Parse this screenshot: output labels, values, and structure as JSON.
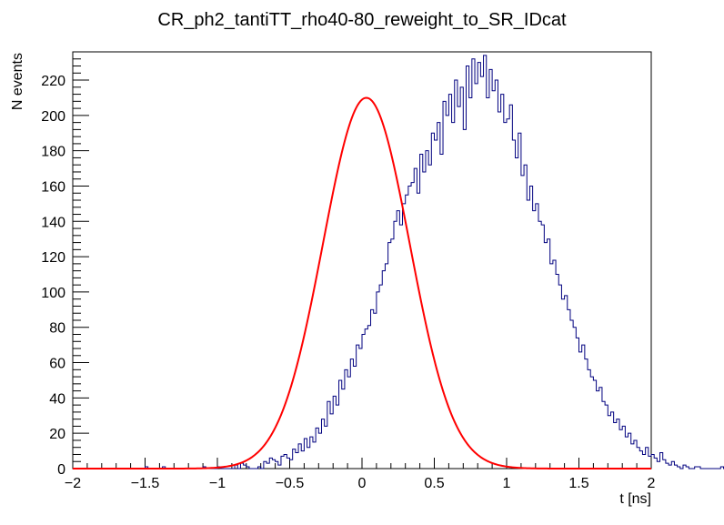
{
  "chart_data": {
    "type": "histogram",
    "title": "CR_ph2_tantiTT_rho40-80_reweight_to_SR_IDcat",
    "xlabel": "t [ns]",
    "ylabel": "N events",
    "xlim": [
      -2,
      2
    ],
    "ylim": [
      0,
      236
    ],
    "x_ticks": [
      -2,
      -1.5,
      -1,
      -0.5,
      0,
      0.5,
      1,
      1.5,
      2
    ],
    "x_tick_labels": [
      "−2",
      "−1.5",
      "−1",
      "−0.5",
      "0",
      "0.5",
      "1",
      "1.5",
      "2"
    ],
    "y_ticks": [
      0,
      20,
      40,
      60,
      80,
      100,
      120,
      140,
      160,
      180,
      200,
      220
    ],
    "y_tick_labels": [
      "0",
      "20",
      "40",
      "60",
      "80",
      "100",
      "120",
      "140",
      "160",
      "180",
      "200",
      "220"
    ],
    "grid": false,
    "legend": "none",
    "series": [
      {
        "kind": "histogram",
        "color": "#00007f",
        "bin_width": 0.02,
        "x_start": -2,
        "values": [
          0,
          0,
          0,
          0,
          0,
          0,
          0,
          0,
          0,
          0,
          0,
          0,
          0,
          0,
          0,
          0,
          0,
          0,
          0,
          0,
          0,
          0,
          0,
          0,
          0,
          1,
          0,
          0,
          0,
          0,
          0,
          1,
          0,
          0,
          0,
          0,
          0,
          0,
          0,
          0,
          0,
          0,
          0,
          0,
          0,
          1,
          0,
          0,
          0,
          0,
          1,
          0,
          0,
          0,
          0,
          0,
          2,
          0,
          3,
          2,
          1,
          0,
          0,
          0,
          1,
          0,
          4,
          3,
          6,
          5,
          4,
          2,
          7,
          8,
          6,
          5,
          11,
          9,
          14,
          10,
          17,
          12,
          18,
          15,
          23,
          20,
          28,
          24,
          38,
          31,
          41,
          36,
          50,
          45,
          56,
          52,
          62,
          58,
          70,
          68,
          76,
          79,
          81,
          90,
          88,
          100,
          104,
          112,
          116,
          128,
          130,
          140,
          146,
          138,
          150,
          155,
          160,
          162,
          170,
          156,
          178,
          168,
          180,
          172,
          190,
          186,
          196,
          178,
          208,
          200,
          212,
          196,
          220,
          205,
          216,
          192,
          228,
          210,
          232,
          218,
          230,
          222,
          234,
          210,
          226,
          214,
          220,
          202,
          212,
          196,
          198,
          206,
          186,
          176,
          190,
          166,
          172,
          152,
          160,
          146,
          150,
          140,
          138,
          128,
          130,
          116,
          118,
          110,
          104,
          96,
          98,
          90,
          84,
          80,
          74,
          66,
          70,
          62,
          56,
          52,
          50,
          44,
          46,
          38,
          36,
          30,
          32,
          26,
          28,
          22,
          24,
          18,
          20,
          14,
          16,
          12,
          10,
          8,
          12,
          7,
          8,
          6,
          4,
          9,
          5,
          3,
          2,
          4,
          2,
          1,
          0,
          2,
          1,
          0,
          0,
          1,
          1,
          0,
          0,
          0,
          0,
          0,
          0,
          0,
          1,
          0,
          0,
          0,
          0,
          0,
          0,
          0,
          0,
          0,
          0,
          0,
          0,
          0,
          0,
          0,
          0,
          0
        ]
      },
      {
        "kind": "gaussian-fit",
        "color": "#ff0000",
        "constant": 210,
        "mean": 0.03,
        "sigma": 0.3
      }
    ]
  }
}
